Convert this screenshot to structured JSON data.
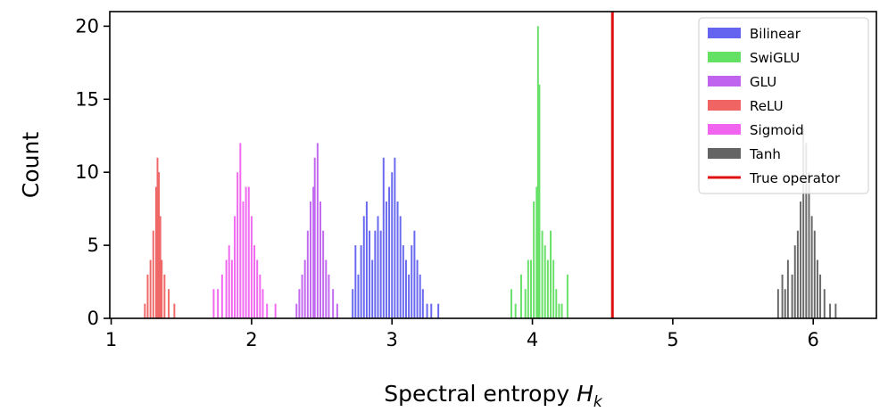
{
  "chart_data": {
    "type": "bar",
    "xlabel": "Spectral entropy",
    "xlabel_symbol": "H",
    "xlabel_subscript": "k",
    "ylabel": "Count",
    "xlim": [
      0.99,
      6.45
    ],
    "ylim": [
      0,
      21
    ],
    "xticks": [
      "1",
      "2",
      "3",
      "4",
      "5",
      "6"
    ],
    "yticks": [
      "0",
      "5",
      "10",
      "15",
      "20"
    ],
    "grid": false,
    "legend_position": "top-right",
    "bin_width": 0.0125,
    "series": [
      {
        "name": "Bilinear",
        "color": "#6464f0",
        "bins": [
          [
            2.72,
            2
          ],
          [
            2.74,
            5
          ],
          [
            2.76,
            3
          ],
          [
            2.78,
            5
          ],
          [
            2.8,
            7
          ],
          [
            2.82,
            8
          ],
          [
            2.84,
            6
          ],
          [
            2.86,
            4
          ],
          [
            2.88,
            6
          ],
          [
            2.9,
            7
          ],
          [
            2.92,
            6
          ],
          [
            2.94,
            11
          ],
          [
            2.96,
            8
          ],
          [
            2.98,
            9
          ],
          [
            3.0,
            10
          ],
          [
            3.02,
            11
          ],
          [
            3.04,
            8
          ],
          [
            3.06,
            7
          ],
          [
            3.08,
            5
          ],
          [
            3.1,
            4
          ],
          [
            3.12,
            3
          ],
          [
            3.14,
            5
          ],
          [
            3.16,
            6
          ],
          [
            3.18,
            4
          ],
          [
            3.2,
            3
          ],
          [
            3.22,
            2
          ],
          [
            3.25,
            1
          ],
          [
            3.28,
            1
          ],
          [
            3.33,
            1
          ]
        ]
      },
      {
        "name": "SwiGLU",
        "color": "#64e064",
        "bins": [
          [
            3.85,
            2
          ],
          [
            3.88,
            1
          ],
          [
            3.92,
            3
          ],
          [
            3.95,
            2
          ],
          [
            3.97,
            4
          ],
          [
            3.99,
            4
          ],
          [
            4.01,
            8
          ],
          [
            4.03,
            9
          ],
          [
            4.04,
            20
          ],
          [
            4.05,
            16
          ],
          [
            4.07,
            6
          ],
          [
            4.09,
            5
          ],
          [
            4.11,
            4
          ],
          [
            4.13,
            6
          ],
          [
            4.15,
            4
          ],
          [
            4.17,
            2
          ],
          [
            4.19,
            1
          ],
          [
            4.21,
            1
          ],
          [
            4.25,
            3
          ]
        ]
      },
      {
        "name": "GLU",
        "color": "#c064f0",
        "bins": [
          [
            2.32,
            1
          ],
          [
            2.34,
            2
          ],
          [
            2.36,
            3
          ],
          [
            2.38,
            4
          ],
          [
            2.4,
            6
          ],
          [
            2.42,
            8
          ],
          [
            2.44,
            9
          ],
          [
            2.45,
            11
          ],
          [
            2.47,
            12
          ],
          [
            2.49,
            8
          ],
          [
            2.51,
            6
          ],
          [
            2.53,
            4
          ],
          [
            2.55,
            3
          ],
          [
            2.58,
            2
          ],
          [
            2.61,
            1
          ]
        ]
      },
      {
        "name": "ReLU",
        "color": "#f06464",
        "bins": [
          [
            1.24,
            1
          ],
          [
            1.26,
            3
          ],
          [
            1.28,
            4
          ],
          [
            1.3,
            6
          ],
          [
            1.32,
            9
          ],
          [
            1.33,
            11
          ],
          [
            1.34,
            10
          ],
          [
            1.35,
            7
          ],
          [
            1.36,
            4
          ],
          [
            1.38,
            3
          ],
          [
            1.41,
            2
          ],
          [
            1.45,
            1
          ]
        ]
      },
      {
        "name": "Sigmoid",
        "color": "#f064f0",
        "bins": [
          [
            1.73,
            2
          ],
          [
            1.76,
            2
          ],
          [
            1.79,
            3
          ],
          [
            1.82,
            4
          ],
          [
            1.84,
            5
          ],
          [
            1.86,
            4
          ],
          [
            1.88,
            7
          ],
          [
            1.9,
            10
          ],
          [
            1.92,
            12
          ],
          [
            1.94,
            8
          ],
          [
            1.96,
            9
          ],
          [
            1.98,
            9
          ],
          [
            2.0,
            7
          ],
          [
            2.02,
            5
          ],
          [
            2.04,
            4
          ],
          [
            2.06,
            3
          ],
          [
            2.08,
            2
          ],
          [
            2.11,
            1
          ],
          [
            2.17,
            1
          ]
        ]
      },
      {
        "name": "Tanh",
        "color": "#646464",
        "bins": [
          [
            5.75,
            2
          ],
          [
            5.78,
            3
          ],
          [
            5.8,
            2
          ],
          [
            5.82,
            4
          ],
          [
            5.85,
            3
          ],
          [
            5.87,
            5
          ],
          [
            5.89,
            6
          ],
          [
            5.91,
            8
          ],
          [
            5.93,
            13
          ],
          [
            5.95,
            12
          ],
          [
            5.97,
            10
          ],
          [
            5.99,
            7
          ],
          [
            6.01,
            6
          ],
          [
            6.03,
            4
          ],
          [
            6.05,
            3
          ],
          [
            6.08,
            2
          ],
          [
            6.12,
            1
          ],
          [
            6.16,
            1
          ]
        ]
      }
    ],
    "reference_line": {
      "name": "True operator",
      "x": 4.57,
      "color": "#e01010"
    }
  }
}
